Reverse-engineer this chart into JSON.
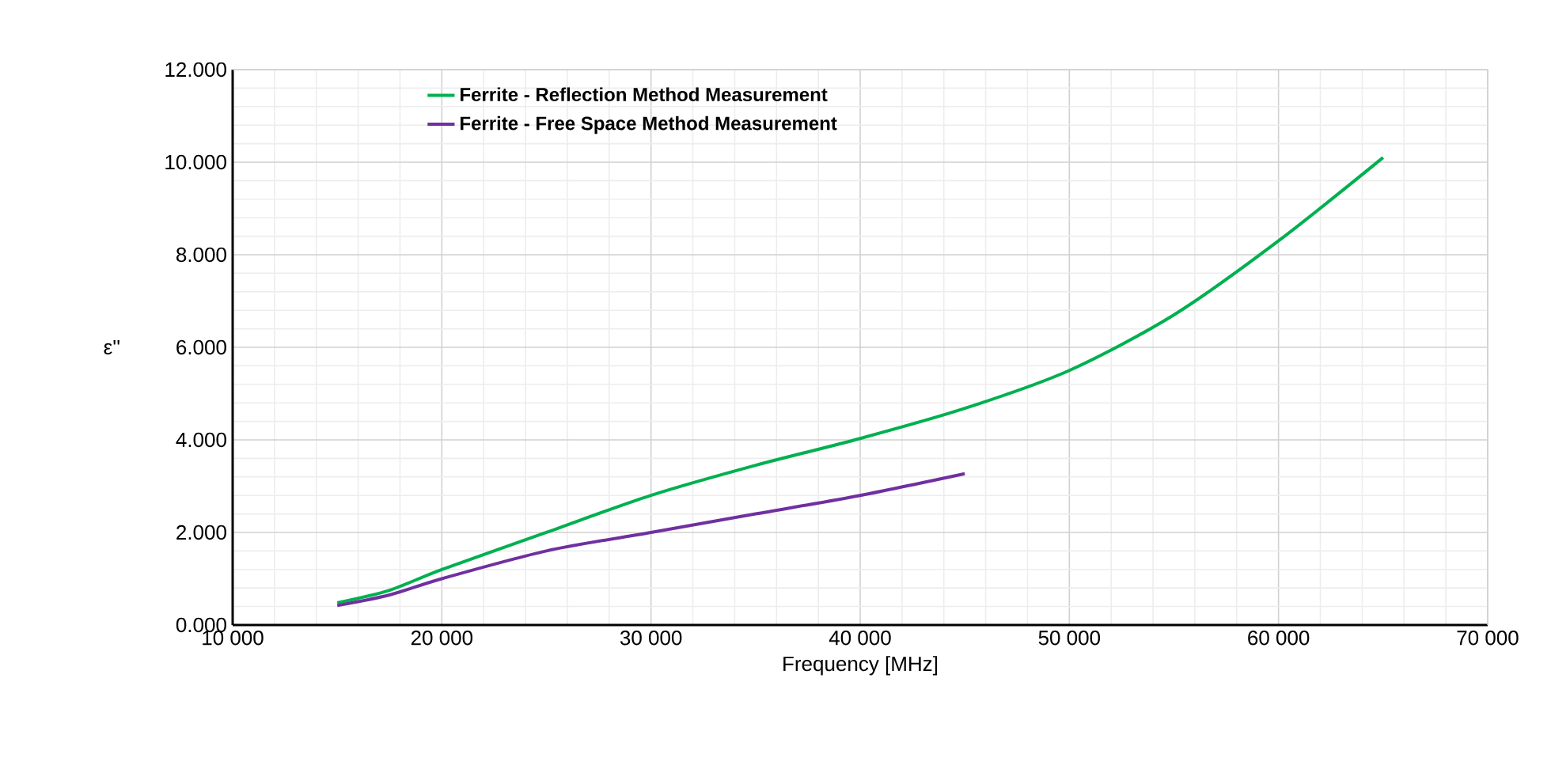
{
  "chart_data": {
    "type": "line",
    "xlabel": "Frequency [MHz]",
    "ylabel": "ε''",
    "xlim": [
      10000,
      70000
    ],
    "ylim": [
      0,
      12
    ],
    "xticks": [
      {
        "value": 10000,
        "label": "10 000"
      },
      {
        "value": 20000,
        "label": "20 000"
      },
      {
        "value": 30000,
        "label": "30 000"
      },
      {
        "value": 40000,
        "label": "40 000"
      },
      {
        "value": 50000,
        "label": "50 000"
      },
      {
        "value": 60000,
        "label": "60 000"
      },
      {
        "value": 70000,
        "label": "70 000"
      }
    ],
    "yticks": [
      {
        "value": 0,
        "label": "0.000"
      },
      {
        "value": 2,
        "label": "2.000"
      },
      {
        "value": 4,
        "label": "4.000"
      },
      {
        "value": 6,
        "label": "6.000"
      },
      {
        "value": 8,
        "label": "8.000"
      },
      {
        "value": 10,
        "label": "10.000"
      },
      {
        "value": 12,
        "label": "12.000"
      }
    ],
    "grid": true,
    "legend": "top left",
    "marker": "none",
    "line_style": "solid",
    "series": [
      {
        "name": "Ferrite - Reflection Method Measurement",
        "color": "#00b050",
        "x": [
          15000,
          17500,
          20000,
          25000,
          30000,
          35000,
          40000,
          45000,
          50000,
          55000,
          60000,
          65000
        ],
        "values": [
          0.48,
          0.75,
          1.2,
          2.0,
          2.8,
          3.45,
          4.03,
          4.68,
          5.5,
          6.7,
          8.3,
          10.1
        ]
      },
      {
        "name": "Ferrite - Free Space Method Measurement",
        "color": "#7030a0",
        "x": [
          15000,
          17500,
          20000,
          25000,
          30000,
          35000,
          40000,
          45000
        ],
        "values": [
          0.42,
          0.65,
          1.0,
          1.6,
          2.0,
          2.4,
          2.8,
          3.27
        ]
      }
    ]
  }
}
